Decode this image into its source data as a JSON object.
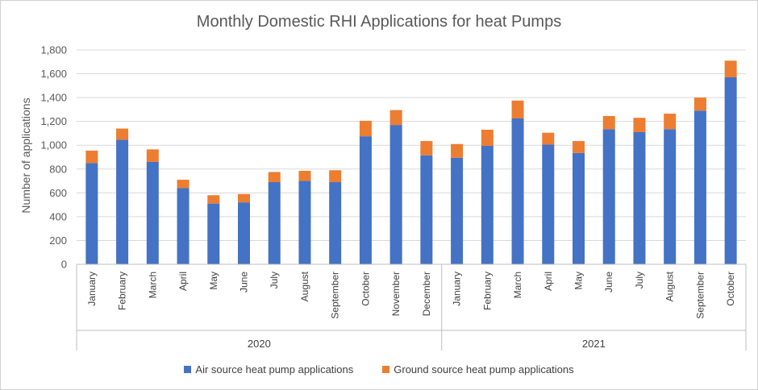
{
  "chart_data": {
    "type": "bar",
    "stacked": true,
    "title": "Monthly Domestic RHI Applications for heat Pumps",
    "xlabel": "",
    "ylabel": "Number of applications",
    "ylim": [
      0,
      1800
    ],
    "yticks": [
      "0",
      "200",
      "400",
      "600",
      "800",
      "1,000",
      "1,200",
      "1,400",
      "1,600",
      "1,800"
    ],
    "grid": true,
    "legend_position": "bottom",
    "groups": [
      {
        "label": "2020",
        "count": 12
      },
      {
        "label": "2021",
        "count": 10
      }
    ],
    "categories": [
      "January",
      "February",
      "March",
      "April",
      "May",
      "June",
      "July",
      "August",
      "September",
      "October",
      "November",
      "December",
      "January",
      "February",
      "March",
      "April",
      "May",
      "June",
      "July",
      "August",
      "September",
      "October"
    ],
    "series": [
      {
        "name": "Air source heat pump applications",
        "color": "#4472C4",
        "values": [
          850,
          1045,
          860,
          640,
          510,
          520,
          690,
          700,
          690,
          1075,
          1170,
          915,
          895,
          995,
          1225,
          1005,
          935,
          1135,
          1110,
          1135,
          1290,
          1570
        ]
      },
      {
        "name": "Ground source heat pump applications",
        "color": "#ED7D31",
        "values": [
          105,
          95,
          105,
          70,
          70,
          70,
          85,
          85,
          100,
          130,
          125,
          120,
          115,
          135,
          150,
          100,
          100,
          110,
          120,
          130,
          110,
          140
        ]
      }
    ]
  }
}
